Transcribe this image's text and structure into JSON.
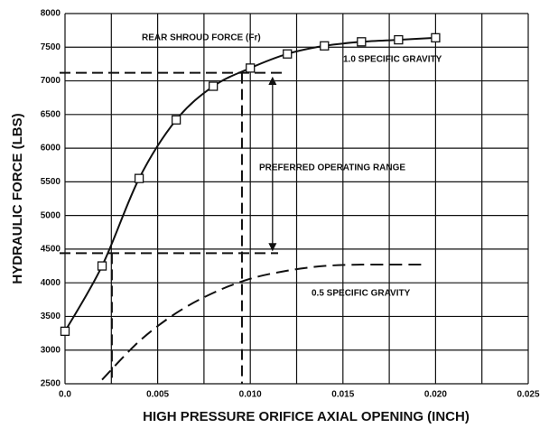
{
  "chart_data": {
    "type": "line",
    "xlabel": "HIGH PRESSURE ORIFICE AXIAL OPENING (INCH)",
    "ylabel": "HYDRAULIC    FORCE (LBS)",
    "xlim": [
      0,
      0.025
    ],
    "ylim": [
      2500,
      8000
    ],
    "xticks": [
      {
        "value": 0,
        "label": "0.0"
      },
      0.005,
      {
        "value": 0.01,
        "label": "0.010"
      },
      0.015,
      {
        "value": 0.02,
        "label": "0.020"
      },
      0.025
    ],
    "xgrid": [
      0.0025,
      0.0075,
      0.0125,
      0.0175,
      0.0225
    ],
    "yticks": [
      2500,
      3000,
      3500,
      4000,
      4500,
      5000,
      5500,
      6000,
      6500,
      7000,
      7500,
      8000
    ],
    "grid": true,
    "series": [
      {
        "name": "1.0 SPECIFIC GRAVITY",
        "color": "#111111",
        "style": "solid",
        "markers": true,
        "x": [
          0,
          0.002,
          0.004,
          0.006,
          0.008,
          0.01,
          0.012,
          0.014,
          0.016,
          0.018,
          0.02
        ],
        "values": [
          3280,
          4250,
          5550,
          6420,
          6920,
          7190,
          7400,
          7520,
          7580,
          7610,
          7640
        ]
      },
      {
        "name": "0.5 SPECIFIC GRAVITY",
        "color": "#111111",
        "style": "dashed",
        "markers": false,
        "x": [
          0.002,
          0.004,
          0.006,
          0.008,
          0.01,
          0.012,
          0.014,
          0.016,
          0.018,
          0.0195
        ],
        "values": [
          2560,
          3130,
          3550,
          3850,
          4060,
          4180,
          4250,
          4270,
          4270,
          4270
        ]
      }
    ],
    "hlines": [
      {
        "y": 7120,
        "x_end": 0.0117
      },
      {
        "y": 4440,
        "x_end": 0.0115
      }
    ],
    "vlines": [
      {
        "x": 0.00253,
        "y_top": 4440
      },
      {
        "x": 0.00955,
        "y_top": 7120
      }
    ],
    "range_arrow": {
      "x": 0.0112,
      "from": 7050,
      "to": 4480
    },
    "annotations": [
      "REAR SHROUD FORCE (Fr)",
      "PREFERRED OPERATING RANGE"
    ]
  }
}
